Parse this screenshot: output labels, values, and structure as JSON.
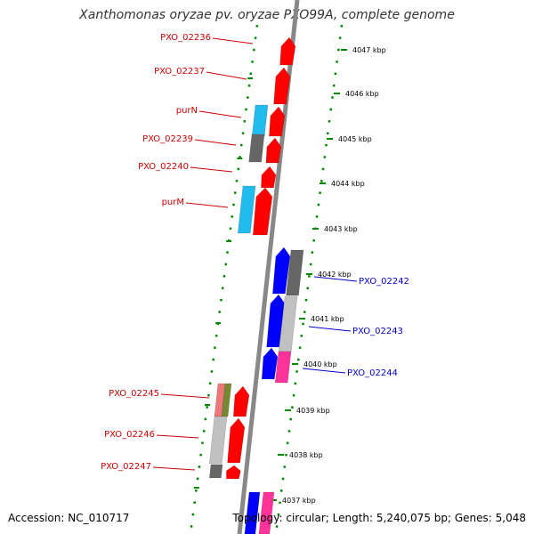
{
  "title": "Xanthomonas oryzae pv. oryzae PXO99A, complete genome",
  "footer": {
    "accession": "Accession: NC_010717",
    "topology": "Topology: circular; Length: 5,240,075 bp; Genes: 5,048"
  },
  "colors": {
    "red_gene": "#ff0000",
    "blue_gene": "#0000ff",
    "cyan_gene": "#22bbee",
    "gray_gene": "#666666",
    "light_gray_gene": "#c0c0c0",
    "pink_gene": "#ff3399",
    "salmon_gene": "#ee7777",
    "olive_gene": "#778833",
    "red_label": "#cc0000",
    "blue_label": "#0000cc",
    "scale_dots": "#008800"
  },
  "scale_ticks": [
    "4047 kbp",
    "4046 kbp",
    "4045 kbp",
    "4044 kbp",
    "4043 kbp",
    "4042 kbp",
    "4041 kbp",
    "4040 kbp",
    "4039 kbp",
    "4038 kbp",
    "4037 kbp"
  ],
  "left_labels": [
    "PXO_02236",
    "PXO_02237",
    "purN",
    "PXO_02239",
    "PXO_02240",
    "purM",
    "PXO_02245",
    "PXO_02246",
    "PXO_02247"
  ],
  "right_labels": [
    "PXO_02242",
    "PXO_02243",
    "PXO_02244"
  ]
}
